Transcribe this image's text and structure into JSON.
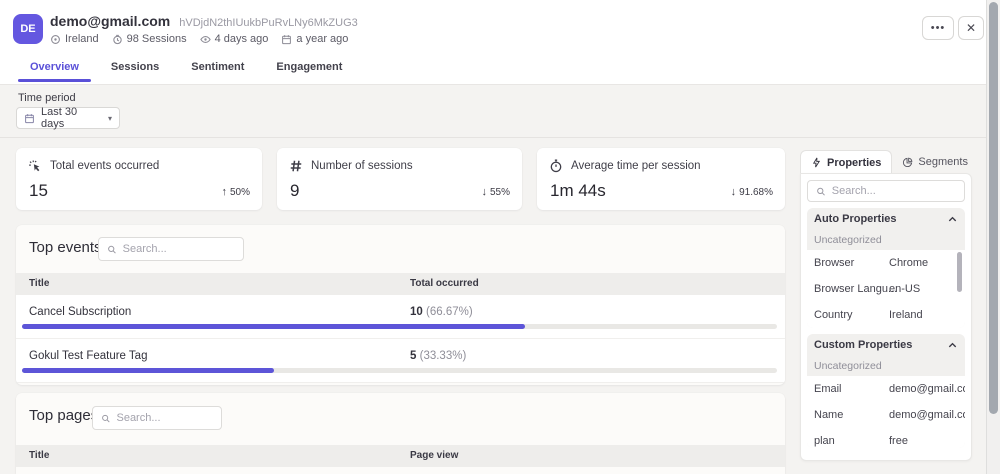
{
  "header": {
    "avatar_initials": "DE",
    "email": "demo@gmail.com",
    "user_id": "hVDjdN2thIUukbPuRvLNy6MkZUG3",
    "meta": {
      "location": "Ireland",
      "sessions": "98 Sessions",
      "last_seen": "4 days ago",
      "first_seen": "a year ago"
    },
    "more_label": "•••",
    "close_label": "✕"
  },
  "tabs": [
    {
      "label": "Overview"
    },
    {
      "label": "Sessions"
    },
    {
      "label": "Sentiment"
    },
    {
      "label": "Engagement"
    }
  ],
  "time_period": {
    "label": "Time period",
    "value": "Last 30 days",
    "caret": "▾"
  },
  "stat_cards": [
    {
      "label": "Total events occurred",
      "value": "15",
      "trend_arrow": "↑",
      "trend_value": "50%"
    },
    {
      "label": "Number of sessions",
      "value": "9",
      "trend_arrow": "↓",
      "trend_value": "55%"
    },
    {
      "label": "Average time per session",
      "value": "1m 44s",
      "trend_arrow": "↓",
      "trend_value": "91.68%"
    }
  ],
  "top_events": {
    "title": "Top events",
    "search_placeholder": "Search...",
    "columns": [
      "Title",
      "Total occurred"
    ],
    "rows": [
      {
        "title": "Cancel Subscription",
        "count": "10",
        "percent_label": "(66.67%)",
        "percent": 66.67
      },
      {
        "title": "Gokul Test Feature Tag",
        "count": "5",
        "percent_label": "(33.33%)",
        "percent": 33.33
      }
    ]
  },
  "top_pages": {
    "title": "Top pages",
    "search_placeholder": "Search...",
    "columns": [
      "Title",
      "Page view"
    ]
  },
  "properties_panel": {
    "tabs": [
      {
        "label": "Properties"
      },
      {
        "label": "Segments"
      }
    ],
    "search_placeholder": "Search...",
    "sections": [
      {
        "title": "Auto Properties",
        "group": "Uncategorized",
        "rows": [
          {
            "key": "Browser",
            "value": "Chrome"
          },
          {
            "key": "Browser Langu...",
            "value": "en-US"
          },
          {
            "key": "Country",
            "value": "Ireland"
          }
        ]
      },
      {
        "title": "Custom Properties",
        "group": "Uncategorized",
        "rows": [
          {
            "key": "Email",
            "value": "demo@gmail.co..."
          },
          {
            "key": "Name",
            "value": "demo@gmail.co..."
          },
          {
            "key": "plan",
            "value": "free"
          }
        ]
      }
    ]
  },
  "colors": {
    "accent": "#5a50d8",
    "avatar_bg": "#6457e0",
    "progress_fill": "#5d55d8"
  }
}
